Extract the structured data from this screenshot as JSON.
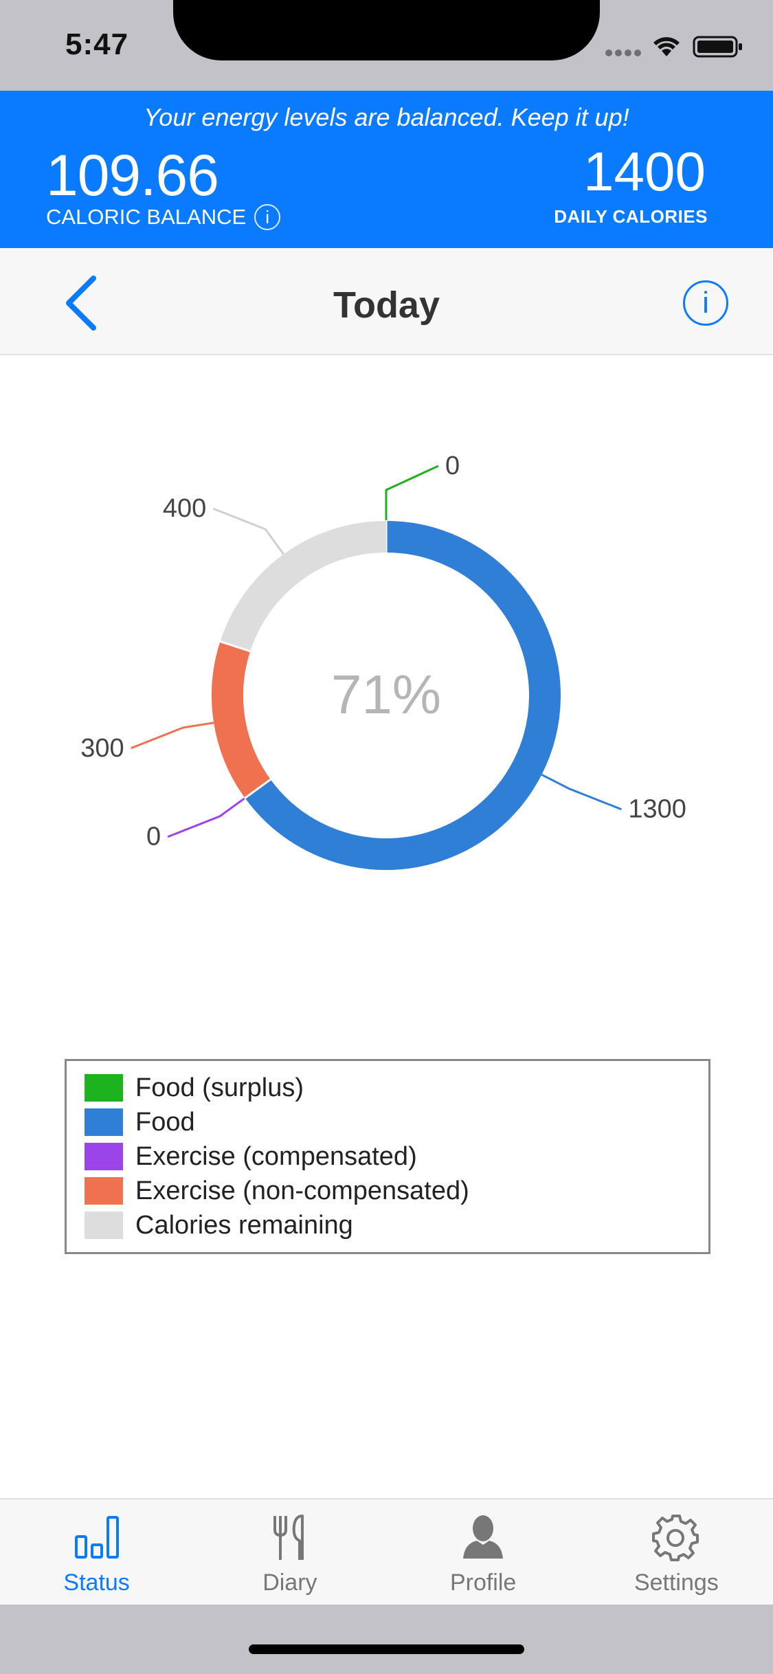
{
  "status_bar": {
    "time": "5:47"
  },
  "banner": {
    "message": "Your energy levels are balanced. Keep it up!",
    "balance_value": "109.66",
    "balance_label": "CALORIC BALANCE",
    "daily_value": "1400",
    "daily_label": "DAILY CALORIES",
    "info_glyph": "i"
  },
  "nav": {
    "title": "Today",
    "info_glyph": "i"
  },
  "chart_data": {
    "type": "pie",
    "center_label": "71%",
    "slices": [
      {
        "label": "Food (surplus)",
        "value": 0,
        "color": "#1db31d"
      },
      {
        "label": "Food",
        "value": 1300,
        "color": "#2f7fd6"
      },
      {
        "label": "Exercise (compensated)",
        "value": 0,
        "color": "#9b44e8"
      },
      {
        "label": "Exercise (non-compensated)",
        "value": 300,
        "color": "#ef7150"
      },
      {
        "label": "Calories remaining",
        "value": 400,
        "color": "#dddddd"
      }
    ],
    "legend_position": "bottom"
  },
  "tabs": [
    {
      "label": "Status",
      "icon": "bar-chart-icon",
      "active": true
    },
    {
      "label": "Diary",
      "icon": "fork-knife-icon",
      "active": false
    },
    {
      "label": "Profile",
      "icon": "person-icon",
      "active": false
    },
    {
      "label": "Settings",
      "icon": "gear-icon",
      "active": false
    }
  ]
}
